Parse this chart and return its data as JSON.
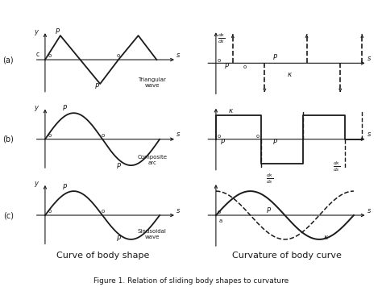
{
  "fig_width": 4.74,
  "fig_height": 3.56,
  "dpi": 100,
  "bg_color": "#ffffff",
  "line_color": "#1a1a1a",
  "text_color": "#1a1a1a",
  "title_left": "Curve of body shape",
  "title_right": "Curvature of body curve",
  "caption": "Figure 1. Relation of sliding body shapes to curvature"
}
